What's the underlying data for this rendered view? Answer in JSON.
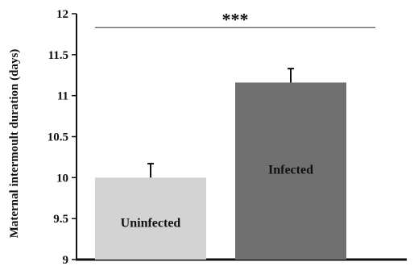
{
  "chart_data": {
    "type": "bar",
    "ylabel": "Maternal intermoult duration (days)",
    "ylim": [
      9,
      12
    ],
    "yticks": [
      "9",
      "9.5",
      "10",
      "10.5",
      "11",
      "11.5",
      "12"
    ],
    "categories": [
      "Uninfected",
      "Infected"
    ],
    "values": [
      10.0,
      11.16
    ],
    "errors": [
      0.17,
      0.17
    ],
    "bar_colors": [
      "#d3d3d3",
      "#707070"
    ],
    "significance": "***",
    "grid": false
  }
}
